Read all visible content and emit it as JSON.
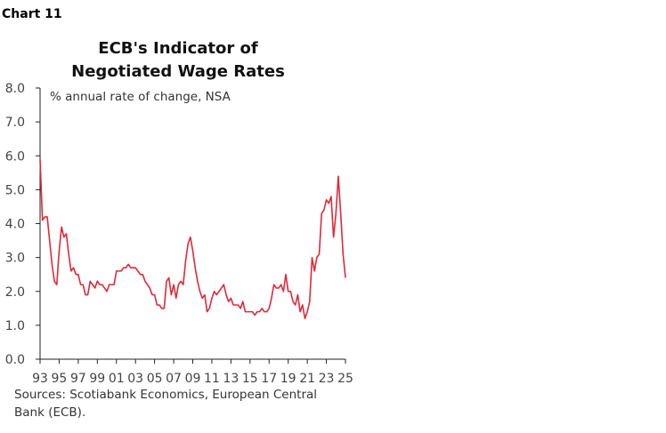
{
  "chart_data": {
    "type": "line",
    "chart_label": "Chart 11",
    "title": [
      "ECB's Indicator of",
      "Negotiated Wage Rates"
    ],
    "subtitle": "% annual rate of change, NSA",
    "source": [
      "Sources: Scotiabank Economics, European Central",
      "Bank (ECB)."
    ],
    "categories": [
      "93",
      null,
      null,
      null,
      null,
      null,
      null,
      null,
      "95",
      null,
      null,
      null,
      null,
      null,
      null,
      null,
      "97",
      null,
      null,
      null,
      null,
      null,
      null,
      null,
      "99",
      null,
      null,
      null,
      null,
      null,
      null,
      null,
      "01",
      null,
      null,
      null,
      null,
      null,
      null,
      null,
      "03",
      null,
      null,
      null,
      null,
      null,
      null,
      null,
      "05",
      null,
      null,
      null,
      null,
      null,
      null,
      null,
      "07",
      null,
      null,
      null,
      null,
      null,
      null,
      null,
      "09",
      null,
      null,
      null,
      null,
      null,
      null,
      null,
      "11",
      null,
      null,
      null,
      null,
      null,
      null,
      null,
      "13",
      null,
      null,
      null,
      null,
      null,
      null,
      null,
      "15",
      null,
      null,
      null,
      null,
      null,
      null,
      null,
      "17",
      null,
      null,
      null,
      null,
      null,
      null,
      null,
      "19",
      null,
      null,
      null,
      null,
      null,
      null,
      null,
      "21",
      null,
      null,
      null,
      null,
      null,
      null,
      null,
      "23",
      null,
      null,
      null,
      null,
      null,
      null,
      null,
      "25"
    ],
    "values": [
      5.9,
      4.1,
      4.2,
      4.2,
      3.5,
      2.8,
      2.3,
      2.2,
      3.2,
      3.9,
      3.6,
      3.7,
      3.1,
      2.6,
      2.7,
      2.5,
      2.5,
      2.2,
      2.2,
      1.9,
      1.9,
      2.3,
      2.2,
      2.1,
      2.3,
      2.2,
      2.2,
      2.1,
      2.0,
      2.2,
      2.2,
      2.2,
      2.6,
      2.6,
      2.6,
      2.7,
      2.7,
      2.8,
      2.7,
      2.7,
      2.7,
      2.6,
      2.5,
      2.5,
      2.3,
      2.2,
      2.1,
      1.9,
      1.9,
      1.6,
      1.6,
      1.5,
      1.5,
      2.3,
      2.4,
      1.9,
      2.2,
      1.8,
      2.2,
      2.3,
      2.2,
      2.9,
      3.4,
      3.6,
      3.2,
      2.7,
      2.3,
      2.0,
      1.8,
      1.9,
      1.4,
      1.5,
      1.8,
      2.0,
      1.9,
      2.0,
      2.1,
      2.2,
      1.9,
      1.7,
      1.8,
      1.6,
      1.6,
      1.6,
      1.5,
      1.7,
      1.4,
      1.4,
      1.4,
      1.4,
      1.3,
      1.4,
      1.4,
      1.5,
      1.4,
      1.4,
      1.5,
      1.8,
      2.2,
      2.1,
      2.1,
      2.2,
      2.0,
      2.5,
      2.0,
      2.0,
      1.7,
      1.6,
      1.9,
      1.4,
      1.6,
      1.2,
      1.4,
      1.7,
      3.0,
      2.6,
      3.0,
      3.1,
      4.3,
      4.4,
      4.7,
      4.6,
      4.8,
      3.6,
      4.3,
      5.4,
      4.3,
      3.1,
      2.4
    ],
    "color": "#e0293a",
    "ylim": [
      0,
      8
    ],
    "yticks": [
      {
        "value": 0,
        "label": "0.0"
      },
      {
        "value": 1,
        "label": "1.0"
      },
      {
        "value": 2,
        "label": "2.0"
      },
      {
        "value": 3,
        "label": "3.0"
      },
      {
        "value": 4,
        "label": "4.0"
      },
      {
        "value": 5,
        "label": "5.0"
      },
      {
        "value": 6,
        "label": "6.0"
      },
      {
        "value": 7,
        "label": "7.0"
      },
      {
        "value": 8,
        "label": "8.0"
      }
    ],
    "grid": false
  }
}
